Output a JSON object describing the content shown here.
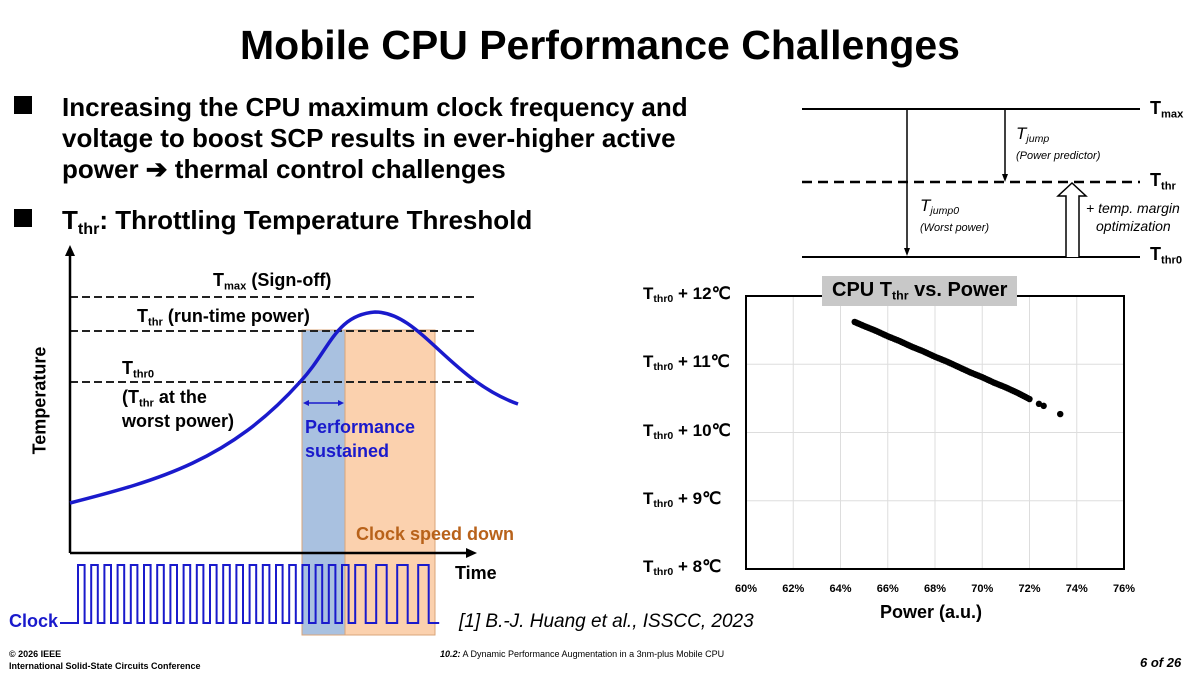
{
  "title": "Mobile CPU Performance Challenges",
  "bullets": [
    {
      "lines": [
        "Increasing the CPU maximum clock frequency and",
        "voltage to boost SCP results in ever-higher active",
        "power ➔ thermal control challenges"
      ]
    },
    {
      "main": "T",
      "sub": "thr",
      "rest": ": Throttling Temperature Threshold"
    }
  ],
  "left_diagram": {
    "ylabel": "Temperature",
    "xlabel": "Time",
    "clock_label": "Clock",
    "tmax": {
      "main": "T",
      "sub": "max",
      "rest": " (Sign-off)"
    },
    "tthr": {
      "main": "T",
      "sub": "thr",
      "rest": " (run-time power)"
    },
    "tthr0": {
      "main": "T",
      "sub": "thr0"
    },
    "tthr0_note1": {
      "pre": "(T",
      "sub": "thr",
      "rest": " at the"
    },
    "tthr0_note2": "worst power)",
    "perf1": "Performance",
    "perf2": "sustained",
    "clock_down": "Clock speed down",
    "colors": {
      "curve": "#1a1acc",
      "blue_band": "#a9c1e0",
      "orange_band": "#fbd1ae",
      "clock_down": "#b8621a"
    }
  },
  "citation": "[1] B.-J. Huang et al., ISSCC, 2023",
  "right_diagram": {
    "tmax": {
      "main": "T",
      "sub": "max"
    },
    "tthr": {
      "main": "T",
      "sub": "thr"
    },
    "tthr0": {
      "main": "T",
      "sub": "thr0"
    },
    "tjump": {
      "main": "T",
      "sub": "jump",
      "note": "(Power predictor)"
    },
    "tjump0": {
      "main": "T",
      "sub": "jump0",
      "note": "(Worst power)"
    },
    "margin1": "+ temp. margin",
    "margin2": "optimization"
  },
  "chart_data": {
    "type": "scatter",
    "title": {
      "main": "CPU T",
      "sub": "thr",
      "rest": " vs. Power"
    },
    "xlabel": "Power (a.u.)",
    "xlim": [
      60,
      76
    ],
    "ylim": [
      8,
      12
    ],
    "x_ticks": [
      "60%",
      "62%",
      "64%",
      "66%",
      "68%",
      "70%",
      "72%",
      "74%",
      "76%"
    ],
    "y_ticks": [
      {
        "main": "T",
        "sub": "thr0",
        "rest": " + 8℃",
        "v": 8
      },
      {
        "main": "T",
        "sub": "thr0",
        "rest": " + 9℃",
        "v": 9
      },
      {
        "main": "T",
        "sub": "thr0",
        "rest": " + 10℃",
        "v": 10
      },
      {
        "main": "T",
        "sub": "thr0",
        "rest": " + 11℃",
        "v": 11
      },
      {
        "main": "T",
        "sub": "thr0",
        "rest": " + 12℃",
        "v": 12
      }
    ],
    "grid": true,
    "series": [
      {
        "name": "CPU Tthr",
        "points": [
          [
            64.6,
            11.62
          ],
          [
            65.0,
            11.56
          ],
          [
            65.5,
            11.49
          ],
          [
            66.0,
            11.41
          ],
          [
            66.5,
            11.34
          ],
          [
            67.0,
            11.26
          ],
          [
            67.5,
            11.19
          ],
          [
            68.0,
            11.11
          ],
          [
            68.5,
            11.04
          ],
          [
            69.0,
            10.96
          ],
          [
            69.5,
            10.88
          ],
          [
            70.0,
            10.81
          ],
          [
            70.5,
            10.73
          ],
          [
            71.0,
            10.66
          ],
          [
            71.5,
            10.58
          ],
          [
            72.0,
            10.49
          ],
          [
            72.4,
            10.42
          ],
          [
            72.6,
            10.39
          ],
          [
            73.3,
            10.27
          ]
        ]
      }
    ]
  },
  "footer": {
    "copyright": "© 2026 IEEE",
    "conference": "International Solid-State Circuits Conference",
    "paper": "10.2: A Dynamic Performance Augmentation in a 3nm-plus Mobile CPU",
    "paper_num": "10.2:",
    "paper_rest": " A Dynamic Performance Augmentation in a 3nm-plus Mobile CPU",
    "page": "6 of 26"
  }
}
